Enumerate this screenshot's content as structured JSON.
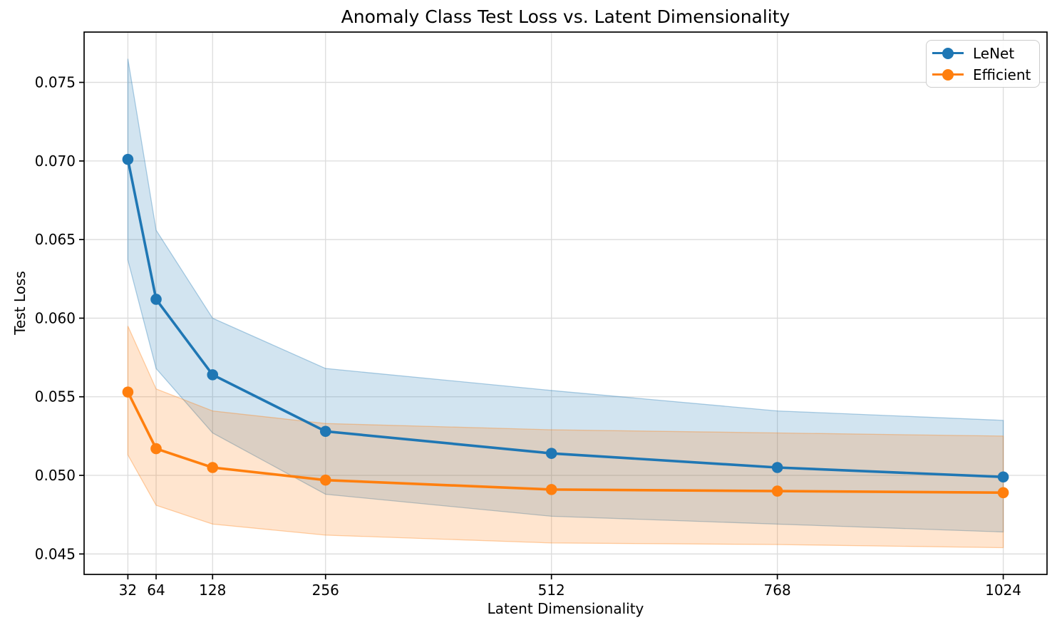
{
  "figure": {
    "title": "Anomaly Class Test Loss vs. Latent Dimensionality",
    "xlabel": "Latent Dimensionality",
    "ylabel": "Test Loss"
  },
  "legend": {
    "position": "upper right",
    "items": [
      {
        "label": "LeNet",
        "color": "#1f77b4"
      },
      {
        "label": "Efficient",
        "color": "#ff7f0e"
      }
    ]
  },
  "chart_data": {
    "type": "line",
    "title": "Anomaly Class Test Loss vs. Latent Dimensionality",
    "xlabel": "Latent Dimensionality",
    "ylabel": "Test Loss",
    "x": [
      32,
      64,
      128,
      256,
      512,
      768,
      1024
    ],
    "xtick_labels": [
      "32",
      "64",
      "128",
      "256",
      "512",
      "768",
      "1024"
    ],
    "yticks": [
      0.045,
      0.05,
      0.055,
      0.06,
      0.065,
      0.07,
      0.075
    ],
    "ytick_labels": [
      "0.045",
      "0.050",
      "0.055",
      "0.060",
      "0.065",
      "0.070",
      "0.075"
    ],
    "xlim": [
      -17.6,
      1073.6
    ],
    "ylim": [
      0.0437,
      0.0782
    ],
    "grid": true,
    "legend_position": "upper right",
    "band_alpha": 0.2,
    "series": [
      {
        "name": "LeNet",
        "color": "#1f77b4",
        "values": [
          0.0701,
          0.0612,
          0.0564,
          0.0528,
          0.0514,
          0.0505,
          0.0499
        ],
        "band_upper": [
          0.0765,
          0.0656,
          0.06,
          0.0568,
          0.0554,
          0.0541,
          0.0535
        ],
        "band_lower": [
          0.0637,
          0.0568,
          0.0527,
          0.0488,
          0.0474,
          0.0469,
          0.0464
        ]
      },
      {
        "name": "Efficient",
        "color": "#ff7f0e",
        "values": [
          0.0553,
          0.0517,
          0.0505,
          0.0497,
          0.0491,
          0.049,
          0.0489
        ],
        "band_upper": [
          0.0595,
          0.0555,
          0.0541,
          0.0533,
          0.0529,
          0.0527,
          0.0525
        ],
        "band_lower": [
          0.0513,
          0.0481,
          0.0469,
          0.0462,
          0.0457,
          0.0456,
          0.0454
        ]
      }
    ]
  }
}
